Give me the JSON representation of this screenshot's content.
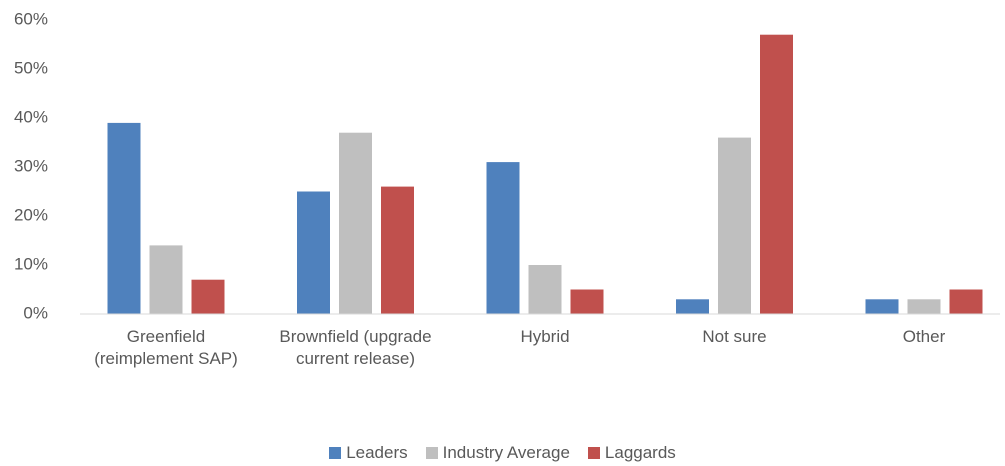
{
  "chart_data": {
    "type": "bar",
    "categories": [
      "Greenfield (reimplement SAP)",
      "Brownfield (upgrade current release)",
      "Hybrid",
      "Not sure",
      "Other"
    ],
    "series": [
      {
        "name": "Leaders",
        "color": "#4f81bd",
        "values": [
          39,
          25,
          31,
          3,
          3
        ]
      },
      {
        "name": "Industry Average",
        "color": "#bfbfbf",
        "values": [
          14,
          37,
          10,
          36,
          3
        ]
      },
      {
        "name": "Laggards",
        "color": "#c0504d",
        "values": [
          7,
          26,
          5,
          57,
          5
        ]
      }
    ],
    "ylim": [
      0,
      60
    ],
    "yticks": [
      {
        "value": 0,
        "label": "0%"
      },
      {
        "value": 10,
        "label": "10%"
      },
      {
        "value": 20,
        "label": "20%"
      },
      {
        "value": 30,
        "label": "30%"
      },
      {
        "value": 40,
        "label": "40%"
      },
      {
        "value": 50,
        "label": "50%"
      },
      {
        "value": 60,
        "label": "60%"
      }
    ],
    "grid": false,
    "legend": "bottom"
  }
}
